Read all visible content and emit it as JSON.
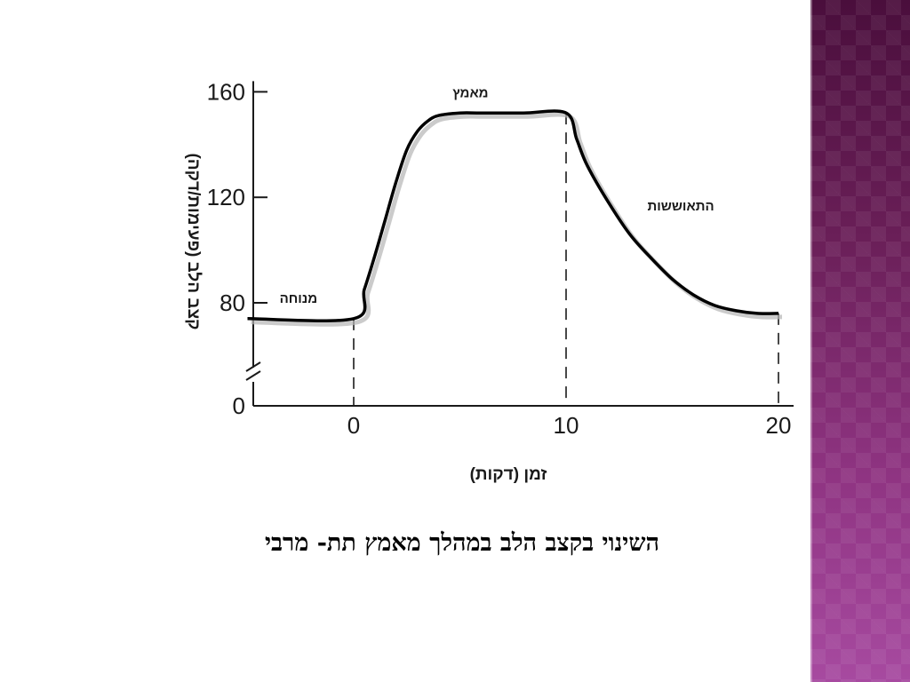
{
  "slide": {
    "caption": "השינוי בקצב הלב במהלך מאמץ תת- מרבי",
    "accent_color": "#7a2a6e"
  },
  "chart_data": {
    "type": "line",
    "title": "",
    "xlabel": "זמן (דקות)",
    "ylabel": "קצב הלב (פעימות/דקה)",
    "xlim": [
      -5,
      20
    ],
    "ylim": [
      0,
      160
    ],
    "axis_break": true,
    "x_ticks": [
      0,
      10,
      20
    ],
    "x_tick_labels": [
      "0",
      "10",
      "20"
    ],
    "y_ticks": [
      0,
      80,
      120,
      160
    ],
    "y_tick_labels": [
      "0",
      "80",
      "120",
      "160"
    ],
    "grid": false,
    "series": [
      {
        "x": [
          -5,
          0,
          0.5,
          1,
          1.5,
          2,
          2.5,
          3,
          3.5,
          4,
          5,
          6,
          8,
          10,
          10.5,
          11,
          12,
          13,
          14,
          15,
          16,
          17,
          18,
          19,
          20
        ],
        "y": [
          74,
          74,
          85,
          98,
          112,
          126,
          138,
          145,
          149,
          151,
          152,
          152,
          152,
          152,
          142,
          132,
          118,
          106,
          97,
          89,
          83,
          79,
          77,
          76,
          76
        ],
        "color": "#000000"
      }
    ],
    "vertical_markers": [
      0,
      10,
      20
    ],
    "annotations": [
      {
        "text": "מנוחה",
        "x": -2.6,
        "y": 80
      },
      {
        "text": "מאמץ",
        "x": 5.5,
        "y": 158
      },
      {
        "text": "התאוששות",
        "x": 15.4,
        "y": 115
      }
    ]
  }
}
